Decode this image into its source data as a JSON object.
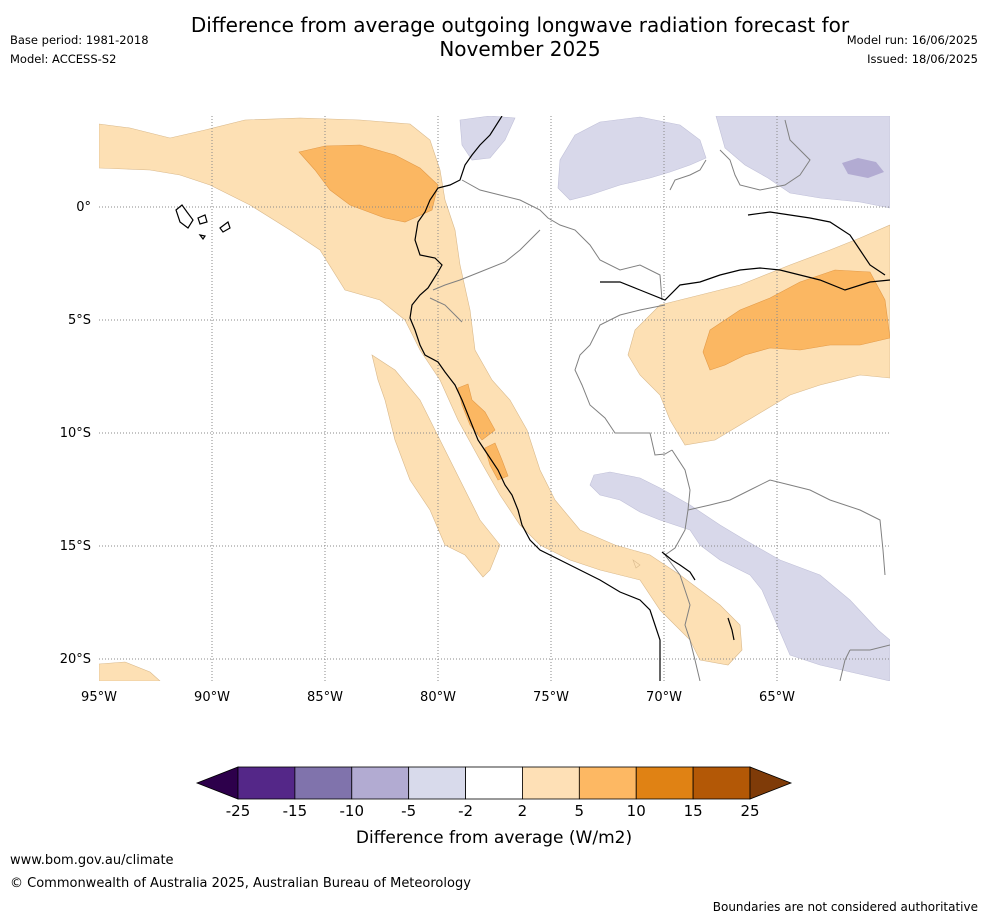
{
  "header": {
    "title_line1": "Difference from average outgoing longwave radiation forecast for",
    "title_line2": "November 2025",
    "base_period": "Base period: 1981-2018",
    "model": "Model: ACCESS-S2",
    "model_run": "Model run: 16/06/2025",
    "issued": "Issued: 18/06/2025"
  },
  "map": {
    "lat_labels": [
      "0°",
      "5°S",
      "10°S",
      "15°S",
      "20°S"
    ],
    "lon_labels": [
      "95°W",
      "90°W",
      "85°W",
      "80°W",
      "75°W",
      "70°W",
      "65°W"
    ],
    "colors": {
      "light_orange": "#fde0b4",
      "mid_orange": "#fbb762",
      "light_purple": "#d8d8ea",
      "mid_purple": "#b2abd2",
      "coast": "#000000",
      "border": "#808080",
      "grid": "#888888"
    }
  },
  "colorbar": {
    "ticks": [
      "-25",
      "-15",
      "-10",
      "-5",
      "-2",
      "2",
      "5",
      "10",
      "15",
      "25"
    ],
    "colors": [
      "#2d004b",
      "#542788",
      "#8073ac",
      "#b2abd2",
      "#d8daeb",
      "#ffffff",
      "#fee0b6",
      "#fdb863",
      "#e08214",
      "#b35806",
      "#7f3b08"
    ],
    "label": "Difference from average (W/m2)"
  },
  "footer": {
    "website": "www.bom.gov.au/climate",
    "copyright": "© Commonwealth of Australia 2025, Australian Bureau of Meteorology",
    "disclaimer": "Boundaries are not considered authoritative"
  }
}
